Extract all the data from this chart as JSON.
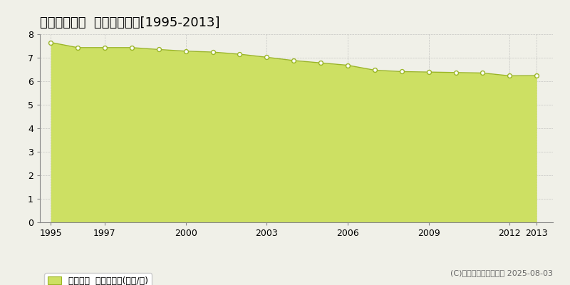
{
  "title": "富良野市錦町  公示地価推移[1995-2013]",
  "years": [
    1995,
    1996,
    1997,
    1998,
    1999,
    2000,
    2001,
    2002,
    2003,
    2004,
    2005,
    2006,
    2007,
    2008,
    2009,
    2010,
    2011,
    2012,
    2013
  ],
  "values": [
    7.65,
    7.43,
    7.43,
    7.43,
    7.35,
    7.28,
    7.24,
    7.15,
    7.02,
    6.88,
    6.78,
    6.68,
    6.47,
    6.41,
    6.39,
    6.37,
    6.35,
    6.23,
    6.24
  ],
  "line_color": "#9ab526",
  "fill_color": "#cde063",
  "fill_alpha": 1.0,
  "marker_facecolor": "white",
  "marker_edgecolor": "#9ab526",
  "background_color": "#f0f0e8",
  "plot_bg_color": "#f0f0e8",
  "grid_color": "#aaaaaa",
  "ylim": [
    0,
    8
  ],
  "yticks": [
    0,
    1,
    2,
    3,
    4,
    5,
    6,
    7,
    8
  ],
  "xtick_labels": [
    "1995",
    "1997",
    "2000",
    "2003",
    "2006",
    "2009",
    "2012",
    "2013"
  ],
  "xtick_positions": [
    1995,
    1997,
    2000,
    2003,
    2006,
    2009,
    2012,
    2013
  ],
  "legend_label": "公示地価  平均坪単価(万円/坪)",
  "legend_color": "#cde063",
  "legend_edge": "#9ab526",
  "copyright_text": "(C)土地価格ドットコム 2025-08-03",
  "title_fontsize": 13,
  "tick_fontsize": 9,
  "legend_fontsize": 9,
  "copyright_fontsize": 8
}
